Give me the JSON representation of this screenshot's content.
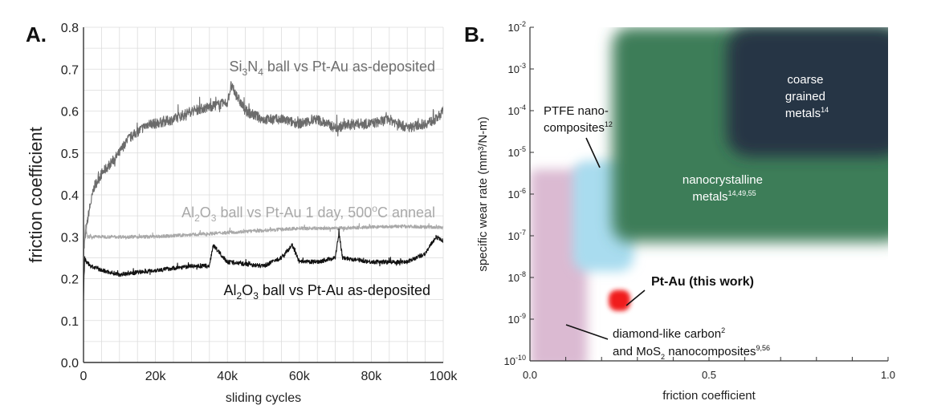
{
  "chart_data": [
    {
      "type": "line",
      "panel_label": "A.",
      "xlabel": "sliding cycles",
      "ylabel": "friction coefficient",
      "xlim": [
        0,
        100000
      ],
      "ylim": [
        0,
        0.8
      ],
      "x_ticks": [
        0,
        20000,
        40000,
        60000,
        80000,
        100000
      ],
      "x_tick_labels": [
        "0",
        "20k",
        "40k",
        "60k",
        "80k",
        "100k"
      ],
      "y_ticks": [
        0.0,
        0.1,
        0.2,
        0.3,
        0.4,
        0.5,
        0.6,
        0.7,
        0.8
      ],
      "y_tick_labels": [
        "0.0",
        "0.1",
        "0.2",
        "0.3",
        "0.4",
        "0.5",
        "0.6",
        "0.7",
        "0.8"
      ],
      "grid": true,
      "series": [
        {
          "name": "Si3N4 ball vs Pt-Au as-deposited",
          "label_parts": [
            "Si",
            "3",
            "N",
            "4",
            " ball vs Pt-Au as-deposited"
          ],
          "color": "#6b6b6b",
          "noise": 0.012,
          "x": [
            0,
            500,
            1500,
            3000,
            5000,
            8000,
            10000,
            12000,
            15000,
            18000,
            20000,
            25000,
            30000,
            35000,
            40000,
            41000,
            45000,
            50000,
            55000,
            60000,
            65000,
            70000,
            75000,
            80000,
            85000,
            90000,
            95000,
            98000,
            100000
          ],
          "y": [
            0.26,
            0.3,
            0.36,
            0.42,
            0.45,
            0.48,
            0.5,
            0.53,
            0.55,
            0.57,
            0.57,
            0.58,
            0.6,
            0.61,
            0.62,
            0.66,
            0.6,
            0.58,
            0.58,
            0.57,
            0.58,
            0.56,
            0.57,
            0.57,
            0.58,
            0.56,
            0.57,
            0.58,
            0.6
          ]
        },
        {
          "name": "Al2O3 ball vs Pt-Au 1 day, 500°C anneal",
          "label_parts": [
            "Al",
            "2",
            "O",
            "3",
            " ball vs Pt-Au 1 day, 500",
            "o",
            "C anneal"
          ],
          "color": "#a9a9a9",
          "noise": 0.004,
          "x": [
            0,
            500,
            1000,
            3000,
            5000,
            10000,
            20000,
            30000,
            40000,
            50000,
            60000,
            70000,
            80000,
            90000,
            100000
          ],
          "y": [
            0.25,
            0.33,
            0.3,
            0.3,
            0.3,
            0.3,
            0.3,
            0.305,
            0.31,
            0.315,
            0.32,
            0.32,
            0.323,
            0.325,
            0.322
          ]
        },
        {
          "name": "Al2O3 ball vs Pt-Au as-deposited",
          "label_parts": [
            "Al",
            "2",
            "O",
            "3",
            " ball vs Pt-Au as-deposited"
          ],
          "color": "#111111",
          "noise": 0.005,
          "x": [
            0,
            300,
            800,
            2000,
            5000,
            10000,
            20000,
            30000,
            35000,
            36000,
            40000,
            50000,
            55000,
            58000,
            60000,
            65000,
            70000,
            71000,
            72000,
            80000,
            90000,
            95000,
            98000,
            100000
          ],
          "y": [
            0.15,
            0.25,
            0.24,
            0.23,
            0.22,
            0.21,
            0.22,
            0.23,
            0.23,
            0.28,
            0.24,
            0.23,
            0.25,
            0.28,
            0.24,
            0.24,
            0.25,
            0.31,
            0.25,
            0.24,
            0.24,
            0.26,
            0.3,
            0.29
          ]
        }
      ]
    },
    {
      "type": "region-map",
      "panel_label": "B.",
      "xlabel": "friction coefficient",
      "ylabel": "specific wear rate (mm³/N-m)",
      "xlim": [
        0,
        1
      ],
      "ylim_log10": [
        -10,
        -2
      ],
      "x_tick_labels": [
        "0.0",
        "0.5",
        "1.0"
      ],
      "y_tick_exponents": [
        "-10",
        "-9",
        "-8",
        "-7",
        "-6",
        "-5",
        "-4",
        "-3",
        "-2"
      ],
      "y_tick_base": "10",
      "regions": [
        {
          "name": "coarse grained metals",
          "label_lines": [
            "coarse",
            "grained",
            "metals"
          ],
          "sup": "14",
          "color": "#253545",
          "friction": [
            0.55,
            1.0
          ],
          "log10_wear": [
            -5.1,
            -2
          ]
        },
        {
          "name": "nanocrystalline metals",
          "label_lines": [
            "nanocrystalline",
            "metals"
          ],
          "sup": "14,49,55",
          "color": "#3d7d58",
          "friction": [
            0.23,
            1.0
          ],
          "log10_wear": [
            -7.15,
            -2
          ]
        },
        {
          "name": "PTFE nano-composites",
          "label_lines": [
            "PTFE nano-",
            "composites"
          ],
          "sup": "12",
          "color": "#a9dcef",
          "friction": [
            0.12,
            0.29
          ],
          "log10_wear": [
            -7.85,
            -5.2
          ]
        },
        {
          "name": "diamond-like carbon and MoS2 nanocomposites",
          "label_lines": [
            "diamond-like carbon",
            "and MoS",
            "2",
            " nanocomposites"
          ],
          "sup1": "2",
          "sup2": "9,56",
          "color": "#d7b2cd",
          "friction": [
            0.0,
            0.16
          ],
          "log10_wear": [
            -10,
            -5.6
          ]
        },
        {
          "name": "Pt-Au (this work)",
          "label_lines": [
            "Pt-Au (this work)"
          ],
          "color": "#f01a1a",
          "friction": [
            0.22,
            0.28
          ],
          "log10_wear": [
            -8.8,
            -8.3
          ]
        }
      ]
    }
  ]
}
